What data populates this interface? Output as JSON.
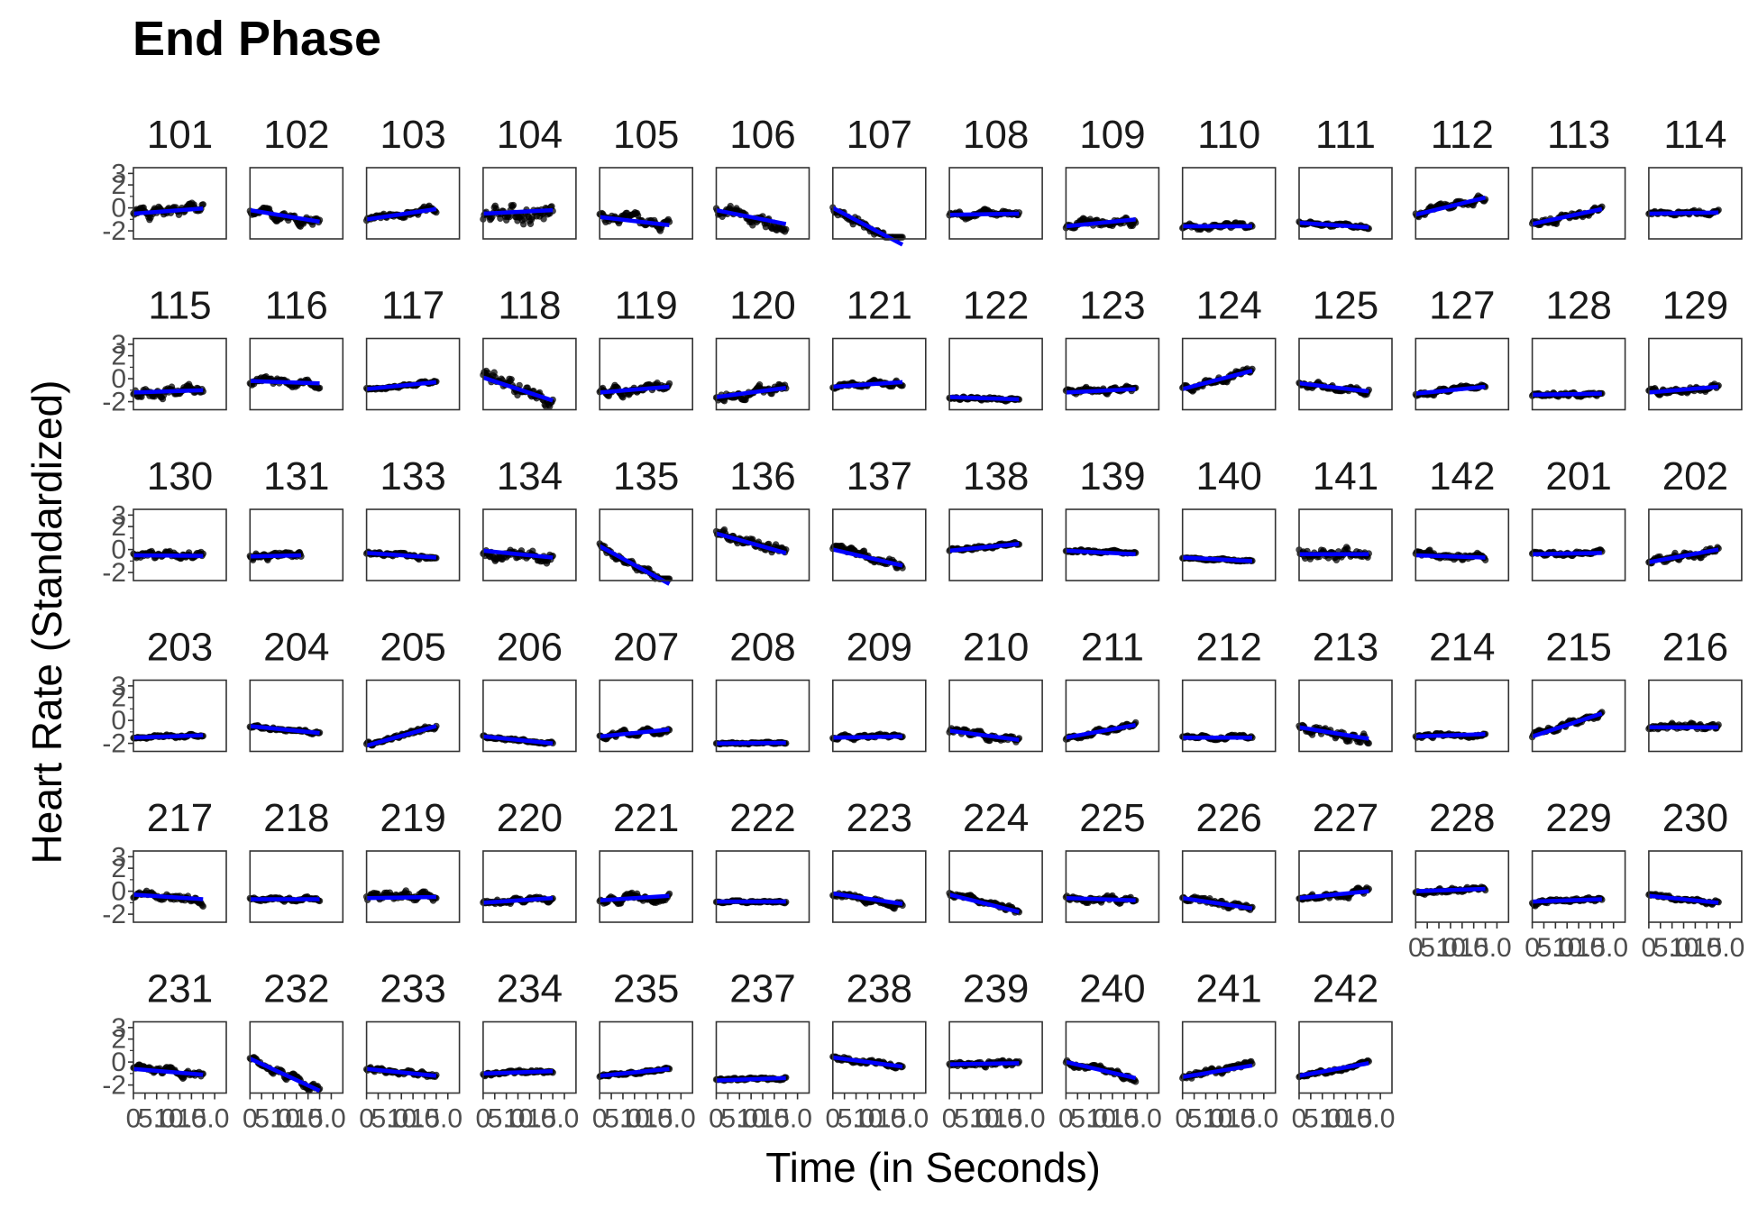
{
  "chart_data": {
    "type": "scatter",
    "title": "End Phase",
    "xlabel": "Time (in Seconds)",
    "ylabel": "Heart Rate (Standardized)",
    "xlim": [
      0,
      20
    ],
    "ylim": [
      -2.7,
      3.5
    ],
    "x_ticks": [
      "0",
      "2.5",
      "5.0",
      "7.5",
      "10.0",
      "12.5",
      "15.0"
    ],
    "x_tick_values": [
      0,
      2.5,
      5,
      7.5,
      10,
      12.5,
      15
    ],
    "y_ticks": [
      "-2",
      "0",
      "2",
      "3"
    ],
    "y_tick_values": [
      -2,
      0,
      2,
      3
    ],
    "grid": false,
    "point_color": "#000000",
    "trend_color": "#0000ff",
    "panels": [
      {
        "id": "101",
        "x_end": 15,
        "level": -0.5,
        "slope": 0.45,
        "noise": 0.55,
        "seed": 1
      },
      {
        "id": "102",
        "x_end": 15,
        "level": -0.2,
        "slope": -1.0,
        "noise": 0.45,
        "seed": 2
      },
      {
        "id": "103",
        "x_end": 15,
        "level": -1.0,
        "slope": 0.9,
        "noise": 0.3,
        "seed": 3
      },
      {
        "id": "104",
        "x_end": 15,
        "level": -0.5,
        "slope": 0.3,
        "noise": 0.9,
        "seed": 4
      },
      {
        "id": "105",
        "x_end": 15,
        "level": -0.8,
        "slope": -0.7,
        "noise": 0.55,
        "seed": 5
      },
      {
        "id": "106",
        "x_end": 15,
        "level": -0.2,
        "slope": -1.2,
        "noise": 0.6,
        "seed": 6
      },
      {
        "id": "107",
        "x_end": 15,
        "level": 0.0,
        "slope": -3.2,
        "noise": 0.5,
        "seed": 7
      },
      {
        "id": "108",
        "x_end": 15,
        "level": -0.6,
        "slope": 0.1,
        "noise": 0.35,
        "seed": 8
      },
      {
        "id": "109",
        "x_end": 15,
        "level": -1.6,
        "slope": 0.6,
        "noise": 0.45,
        "seed": 9
      },
      {
        "id": "110",
        "x_end": 15,
        "level": -1.6,
        "slope": 0.0,
        "noise": 0.3,
        "seed": 10
      },
      {
        "id": "111",
        "x_end": 15,
        "level": -1.3,
        "slope": -0.4,
        "noise": 0.2,
        "seed": 11
      },
      {
        "id": "112",
        "x_end": 15,
        "level": -0.6,
        "slope": 1.5,
        "noise": 0.35,
        "seed": 12
      },
      {
        "id": "113",
        "x_end": 15,
        "level": -1.4,
        "slope": 1.3,
        "noise": 0.35,
        "seed": 13
      },
      {
        "id": "114",
        "x_end": 15,
        "level": -0.5,
        "slope": 0.1,
        "noise": 0.2,
        "seed": 14
      },
      {
        "id": "115",
        "x_end": 15,
        "level": -1.2,
        "slope": 0.2,
        "noise": 0.45,
        "seed": 15
      },
      {
        "id": "116",
        "x_end": 15,
        "level": -0.2,
        "slope": -0.2,
        "noise": 0.4,
        "seed": 16
      },
      {
        "id": "117",
        "x_end": 15,
        "level": -0.9,
        "slope": 0.6,
        "noise": 0.15,
        "seed": 17
      },
      {
        "id": "118",
        "x_end": 15,
        "level": 0.1,
        "slope": -2.0,
        "noise": 0.75,
        "seed": 18
      },
      {
        "id": "119",
        "x_end": 15,
        "level": -1.2,
        "slope": 0.5,
        "noise": 0.45,
        "seed": 19
      },
      {
        "id": "120",
        "x_end": 15,
        "level": -1.6,
        "slope": 0.8,
        "noise": 0.45,
        "seed": 20
      },
      {
        "id": "121",
        "x_end": 15,
        "level": -0.7,
        "slope": 0.4,
        "noise": 0.25,
        "seed": 21
      },
      {
        "id": "122",
        "x_end": 15,
        "level": -1.6,
        "slope": -0.2,
        "noise": 0.15,
        "seed": 22
      },
      {
        "id": "123",
        "x_end": 15,
        "level": -1.2,
        "slope": 0.3,
        "noise": 0.3,
        "seed": 23
      },
      {
        "id": "124",
        "x_end": 15,
        "level": -0.9,
        "slope": 1.6,
        "noise": 0.35,
        "seed": 24
      },
      {
        "id": "125",
        "x_end": 15,
        "level": -0.4,
        "slope": -0.7,
        "noise": 0.3,
        "seed": 25
      },
      {
        "id": "127",
        "x_end": 15,
        "level": -1.3,
        "slope": 0.6,
        "noise": 0.25,
        "seed": 27
      },
      {
        "id": "128",
        "x_end": 15,
        "level": -1.4,
        "slope": 0.1,
        "noise": 0.2,
        "seed": 28
      },
      {
        "id": "129",
        "x_end": 15,
        "level": -1.2,
        "slope": 0.5,
        "noise": 0.3,
        "seed": 29
      },
      {
        "id": "130",
        "x_end": 15,
        "level": -0.5,
        "slope": -0.05,
        "noise": 0.4,
        "seed": 30
      },
      {
        "id": "131",
        "x_end": 11,
        "level": -0.6,
        "slope": 0.1,
        "noise": 0.3,
        "seed": 31
      },
      {
        "id": "133",
        "x_end": 15,
        "level": -0.3,
        "slope": -0.4,
        "noise": 0.2,
        "seed": 33
      },
      {
        "id": "134",
        "x_end": 15,
        "level": -0.1,
        "slope": -0.6,
        "noise": 0.6,
        "seed": 34
      },
      {
        "id": "135",
        "x_end": 15,
        "level": 0.3,
        "slope": -3.3,
        "noise": 0.4,
        "seed": 35
      },
      {
        "id": "136",
        "x_end": 15,
        "level": 1.4,
        "slope": -1.7,
        "noise": 0.5,
        "seed": 36
      },
      {
        "id": "137",
        "x_end": 15,
        "level": 0.0,
        "slope": -1.4,
        "noise": 0.4,
        "seed": 37
      },
      {
        "id": "138",
        "x_end": 15,
        "level": -0.1,
        "slope": 0.6,
        "noise": 0.2,
        "seed": 38
      },
      {
        "id": "139",
        "x_end": 15,
        "level": -0.1,
        "slope": -0.3,
        "noise": 0.15,
        "seed": 39
      },
      {
        "id": "140",
        "x_end": 15,
        "level": -0.7,
        "slope": -0.3,
        "noise": 0.1,
        "seed": 40
      },
      {
        "id": "141",
        "x_end": 15,
        "level": -0.4,
        "slope": 0.0,
        "noise": 0.65,
        "seed": 41
      },
      {
        "id": "142",
        "x_end": 15,
        "level": -0.5,
        "slope": -0.2,
        "noise": 0.35,
        "seed": 42
      },
      {
        "id": "201",
        "x_end": 15,
        "level": -0.4,
        "slope": 0.1,
        "noise": 0.2,
        "seed": 43
      },
      {
        "id": "202",
        "x_end": 15,
        "level": -1.1,
        "slope": 1.1,
        "noise": 0.4,
        "seed": 44
      },
      {
        "id": "203",
        "x_end": 15,
        "level": -1.5,
        "slope": 0.2,
        "noise": 0.15,
        "seed": 45
      },
      {
        "id": "204",
        "x_end": 15,
        "level": -0.5,
        "slope": -0.6,
        "noise": 0.15,
        "seed": 46
      },
      {
        "id": "205",
        "x_end": 15,
        "level": -2.2,
        "slope": 1.7,
        "noise": 0.25,
        "seed": 47
      },
      {
        "id": "206",
        "x_end": 15,
        "level": -1.4,
        "slope": -0.6,
        "noise": 0.15,
        "seed": 48
      },
      {
        "id": "207",
        "x_end": 15,
        "level": -1.4,
        "slope": 0.6,
        "noise": 0.25,
        "seed": 49
      },
      {
        "id": "208",
        "x_end": 15,
        "level": -2.0,
        "slope": 0.05,
        "noise": 0.1,
        "seed": 50
      },
      {
        "id": "209",
        "x_end": 15,
        "level": -1.5,
        "slope": 0.1,
        "noise": 0.2,
        "seed": 51
      },
      {
        "id": "210",
        "x_end": 15,
        "level": -0.9,
        "slope": -0.8,
        "noise": 0.35,
        "seed": 52
      },
      {
        "id": "211",
        "x_end": 15,
        "level": -1.5,
        "slope": 1.1,
        "noise": 0.25,
        "seed": 53
      },
      {
        "id": "212",
        "x_end": 15,
        "level": -1.5,
        "slope": 0.0,
        "noise": 0.2,
        "seed": 54
      },
      {
        "id": "213",
        "x_end": 15,
        "level": -0.6,
        "slope": -1.0,
        "noise": 0.5,
        "seed": 55
      },
      {
        "id": "214",
        "x_end": 15,
        "level": -1.4,
        "slope": 0.2,
        "noise": 0.2,
        "seed": 56
      },
      {
        "id": "215",
        "x_end": 15,
        "level": -1.4,
        "slope": 2.0,
        "noise": 0.3,
        "seed": 57
      },
      {
        "id": "216",
        "x_end": 15,
        "level": -0.6,
        "slope": 0.0,
        "noise": 0.35,
        "seed": 58
      },
      {
        "id": "217",
        "x_end": 15,
        "level": -0.3,
        "slope": -0.4,
        "noise": 0.45,
        "seed": 59
      },
      {
        "id": "218",
        "x_end": 15,
        "level": -0.7,
        "slope": 0.0,
        "noise": 0.2,
        "seed": 60
      },
      {
        "id": "219",
        "x_end": 15,
        "level": -0.6,
        "slope": 0.1,
        "noise": 0.5,
        "seed": 61
      },
      {
        "id": "220",
        "x_end": 15,
        "level": -1.0,
        "slope": 0.4,
        "noise": 0.25,
        "seed": 62
      },
      {
        "id": "221",
        "x_end": 15,
        "level": -0.8,
        "slope": 0.4,
        "noise": 0.4,
        "seed": 63
      },
      {
        "id": "222",
        "x_end": 15,
        "level": -0.9,
        "slope": 0.0,
        "noise": 0.1,
        "seed": 64
      },
      {
        "id": "223",
        "x_end": 15,
        "level": -0.2,
        "slope": -0.9,
        "noise": 0.3,
        "seed": 65
      },
      {
        "id": "224",
        "x_end": 15,
        "level": -0.3,
        "slope": -1.5,
        "noise": 0.3,
        "seed": 66
      },
      {
        "id": "225",
        "x_end": 15,
        "level": -0.6,
        "slope": -0.2,
        "noise": 0.3,
        "seed": 67
      },
      {
        "id": "226",
        "x_end": 15,
        "level": -0.6,
        "slope": -0.9,
        "noise": 0.35,
        "seed": 68
      },
      {
        "id": "227",
        "x_end": 15,
        "level": -0.6,
        "slope": 0.6,
        "noise": 0.3,
        "seed": 69
      },
      {
        "id": "228",
        "x_end": 15,
        "level": 0.0,
        "slope": 0.2,
        "noise": 0.25,
        "seed": 70
      },
      {
        "id": "229",
        "x_end": 15,
        "level": -0.9,
        "slope": 0.2,
        "noise": 0.25,
        "seed": 71
      },
      {
        "id": "230",
        "x_end": 15,
        "level": -0.4,
        "slope": -0.6,
        "noise": 0.2,
        "seed": 72
      },
      {
        "id": "231",
        "x_end": 15,
        "level": -0.6,
        "slope": -0.5,
        "noise": 0.35,
        "seed": 73
      },
      {
        "id": "232",
        "x_end": 15,
        "level": 0.3,
        "slope": -2.8,
        "noise": 0.4,
        "seed": 74
      },
      {
        "id": "233",
        "x_end": 15,
        "level": -0.6,
        "slope": -0.6,
        "noise": 0.25,
        "seed": 75
      },
      {
        "id": "234",
        "x_end": 15,
        "level": -1.0,
        "slope": 0.2,
        "noise": 0.2,
        "seed": 76
      },
      {
        "id": "235",
        "x_end": 15,
        "level": -1.2,
        "slope": 0.6,
        "noise": 0.15,
        "seed": 77
      },
      {
        "id": "237",
        "x_end": 15,
        "level": -1.6,
        "slope": 0.2,
        "noise": 0.15,
        "seed": 78
      },
      {
        "id": "238",
        "x_end": 15,
        "level": 0.4,
        "slope": -0.8,
        "noise": 0.25,
        "seed": 79
      },
      {
        "id": "239",
        "x_end": 15,
        "level": -0.2,
        "slope": 0.1,
        "noise": 0.3,
        "seed": 80
      },
      {
        "id": "240",
        "x_end": 15,
        "level": 0.0,
        "slope": -1.4,
        "noise": 0.3,
        "seed": 81
      },
      {
        "id": "241",
        "x_end": 15,
        "level": -1.3,
        "slope": 1.0,
        "noise": 0.35,
        "seed": 82
      },
      {
        "id": "242",
        "x_end": 15,
        "level": -1.2,
        "slope": 1.1,
        "noise": 0.2,
        "seed": 83
      }
    ]
  }
}
